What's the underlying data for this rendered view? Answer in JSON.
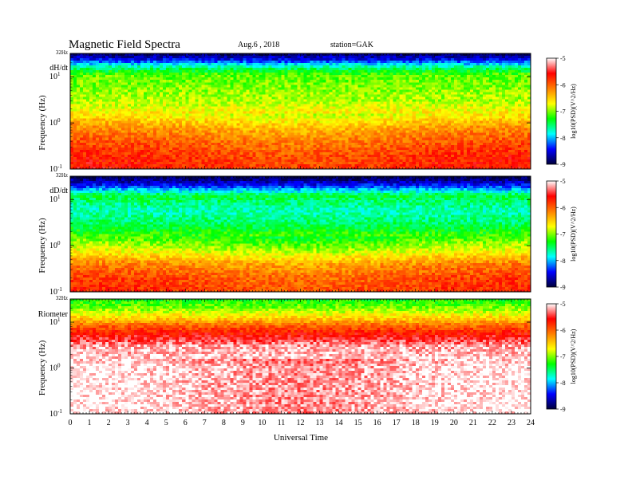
{
  "header": {
    "title": "Magnetic Field Spectra",
    "date": "Aug.6 , 2018",
    "station": "station=GAK"
  },
  "chart_data": {
    "type": "heatmap",
    "xlabel": "Universal Time",
    "xlim": [
      0,
      24
    ],
    "x_ticks": [
      "0",
      "1",
      "2",
      "3",
      "4",
      "5",
      "6",
      "7",
      "8",
      "9",
      "10",
      "11",
      "12",
      "13",
      "14",
      "15",
      "16",
      "17",
      "18",
      "19",
      "20",
      "21",
      "22",
      "23",
      "24"
    ],
    "y_scale": "log",
    "ylim_hz": [
      0.1,
      32
    ],
    "colorbar": {
      "label": "log10(PSD)(V^2/Hz)",
      "range": [
        -9,
        -5
      ],
      "ticks": [
        "-5",
        "-6",
        "-7",
        "-8",
        "-9"
      ],
      "stops": [
        "#00003a",
        "#0000ff",
        "#00ffff",
        "#00ff00",
        "#ffff00",
        "#ff7f00",
        "#ff0000",
        "#ffffff"
      ]
    },
    "panels": [
      {
        "name": "dH/dt",
        "ylabel": "Frequency (Hz)",
        "top_label": "32Hz",
        "y_ticks": [
          "10^1",
          "10^0",
          "10^-1"
        ],
        "bands_log10psd": [
          {
            "f_hz": 32,
            "v": -8.9
          },
          {
            "f_hz": 24,
            "v": -8.5
          },
          {
            "f_hz": 16,
            "v": -7.6
          },
          {
            "f_hz": 11,
            "v": -7.1
          },
          {
            "f_hz": 6,
            "v": -7.0
          },
          {
            "f_hz": 3,
            "v": -6.9
          },
          {
            "f_hz": 1.5,
            "v": -6.6
          },
          {
            "f_hz": 0.8,
            "v": -6.2
          },
          {
            "f_hz": 0.4,
            "v": -5.9
          },
          {
            "f_hz": 0.2,
            "v": -5.7
          },
          {
            "f_hz": 0.1,
            "v": -5.6
          }
        ]
      },
      {
        "name": "dD/dt",
        "ylabel": "Frequency (Hz)",
        "top_label": "32Hz",
        "y_ticks": [
          "10^1",
          "10^0",
          "10^-1"
        ],
        "bands_log10psd": [
          {
            "f_hz": 32,
            "v": -9.0
          },
          {
            "f_hz": 20,
            "v": -8.4
          },
          {
            "f_hz": 12,
            "v": -7.4
          },
          {
            "f_hz": 6,
            "v": -7.7
          },
          {
            "f_hz": 3,
            "v": -7.5
          },
          {
            "f_hz": 1.5,
            "v": -7.1
          },
          {
            "f_hz": 0.7,
            "v": -6.6
          },
          {
            "f_hz": 0.4,
            "v": -6.1
          },
          {
            "f_hz": 0.2,
            "v": -5.8
          },
          {
            "f_hz": 0.1,
            "v": -5.7
          }
        ]
      },
      {
        "name": "Riometer",
        "ylabel": "Frequency (Hz)",
        "top_label": "32Hz",
        "y_ticks": [
          "10^1",
          "10^0",
          "10^-1"
        ],
        "bands_log10psd": [
          {
            "f_hz": 32,
            "v": -7.3
          },
          {
            "f_hz": 20,
            "v": -7.0
          },
          {
            "f_hz": 12,
            "v": -6.5
          },
          {
            "f_hz": 9,
            "v": -6.1
          },
          {
            "f_hz": 6,
            "v": -5.7
          },
          {
            "f_hz": 3,
            "v": -5.2
          },
          {
            "f_hz": 1,
            "v": -5.0
          },
          {
            "f_hz": 0.1,
            "v": -5.0
          }
        ]
      }
    ]
  }
}
